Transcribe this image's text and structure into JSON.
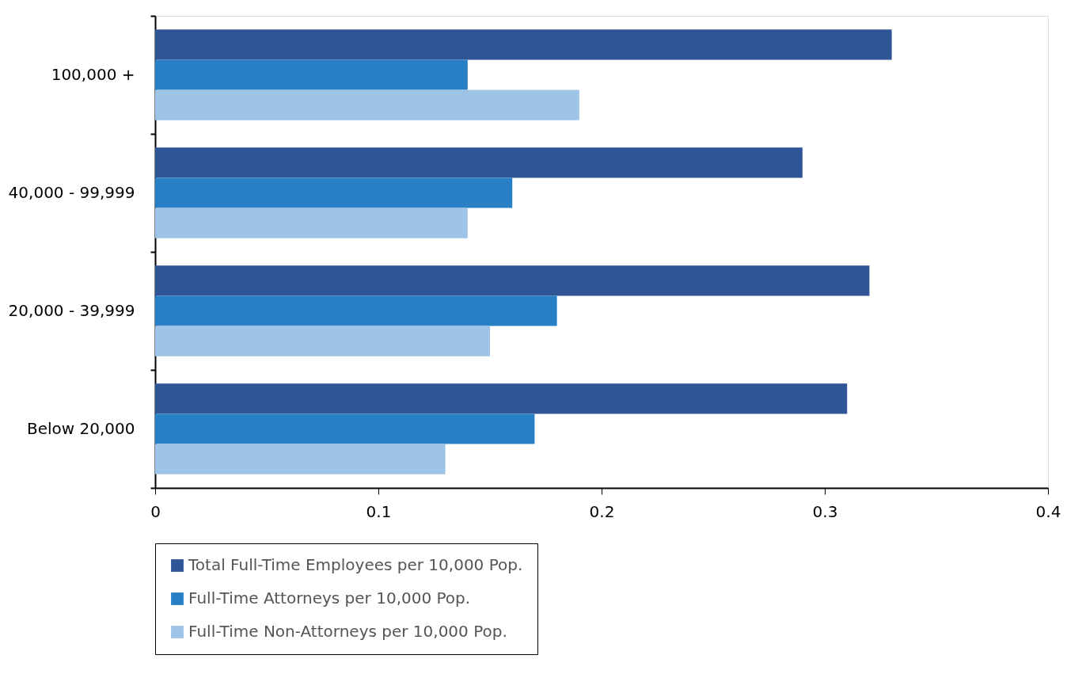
{
  "chart_data": {
    "type": "bar",
    "orientation": "horizontal",
    "categories": [
      "100,000 +",
      "40,000 - 99,999",
      "20,000 - 39,999",
      "Below 20,000"
    ],
    "series": [
      {
        "name": "Total Full-Time Employees per 10,000 Pop.",
        "color": "#2f5597",
        "values": [
          0.33,
          0.29,
          0.32,
          0.31
        ]
      },
      {
        "name": "Full-Time Attorneys per 10,000 Pop.",
        "color": "#2780c6",
        "values": [
          0.14,
          0.16,
          0.18,
          0.17
        ]
      },
      {
        "name": "Full-Time Non-Attorneys per 10,000 Pop.",
        "color": "#9dc3e6",
        "values": [
          0.19,
          0.14,
          0.15,
          0.13
        ]
      }
    ],
    "xlim": [
      0,
      0.4
    ],
    "xticks": [
      0,
      0.1,
      0.2,
      0.3,
      0.4
    ],
    "grid": false,
    "legend": "bottom left"
  }
}
